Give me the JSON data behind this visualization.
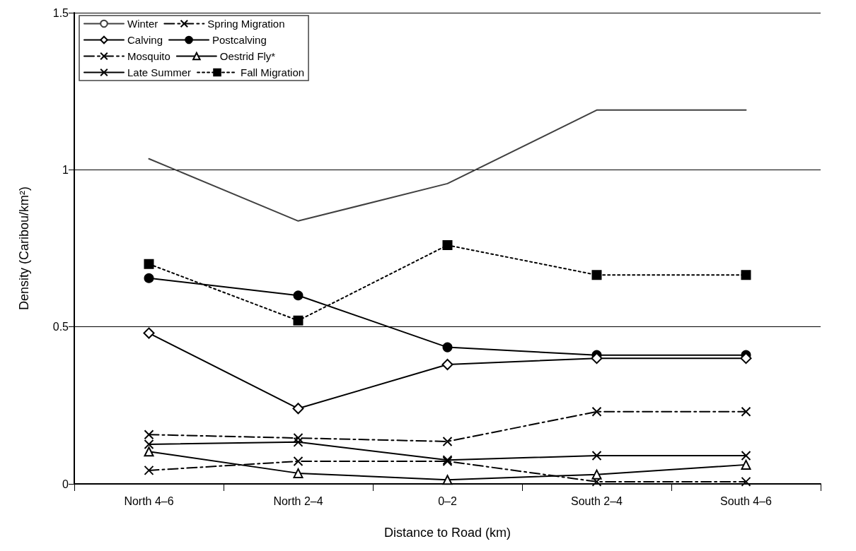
{
  "chart_data": {
    "type": "line",
    "xlabel": "Distance to Road (km)",
    "ylabel": "Density (Caribou/km²)",
    "categories": [
      "North 4–6",
      "North 2–4",
      "0–2",
      "South 2–4",
      "South 4–6"
    ],
    "ylim": [
      0,
      1.5
    ],
    "yticks": [
      0,
      0.5,
      1,
      1.5
    ],
    "grid": "y",
    "legend": "top left",
    "series": [
      {
        "name": "Winter",
        "color": "#404040",
        "marker": "none",
        "line_style": "solid",
        "values": [
          1.035,
          0.837,
          0.956,
          1.19,
          1.19
        ]
      },
      {
        "name": "Spring Migration",
        "color": "#000000",
        "marker": "cross",
        "line_style": "dashed",
        "values": [
          0.157,
          0.146,
          0.135,
          0.23,
          0.23
        ]
      },
      {
        "name": "Calving",
        "color": "#000000",
        "marker": "diamond",
        "line_style": "solid",
        "values": [
          0.48,
          0.24,
          0.38,
          0.4,
          0.4
        ]
      },
      {
        "name": "Postcalving",
        "color": "#000000",
        "marker": "circle",
        "line_style": "solid",
        "values": [
          0.655,
          0.6,
          0.435,
          0.41,
          0.41
        ]
      },
      {
        "name": "Mosquito",
        "color": "#000000",
        "marker": "cross",
        "line_style": "dashed",
        "values": [
          0.043,
          0.072,
          0.072,
          0.007,
          0.007
        ]
      },
      {
        "name": "Oestrid Fly*",
        "color": "#000000",
        "marker": "triangle",
        "line_style": "solid",
        "values": [
          0.103,
          0.034,
          0.013,
          0.03,
          0.061
        ]
      },
      {
        "name": "Late Summer",
        "color": "#000000",
        "marker": "cross",
        "line_style": "solid",
        "values": [
          0.126,
          0.133,
          0.076,
          0.09,
          0.09
        ]
      },
      {
        "name": "Fall Migration",
        "color": "#000000",
        "marker": "square",
        "line_style": "dotted",
        "values": [
          0.7,
          0.52,
          0.76,
          0.665,
          0.665
        ]
      }
    ]
  }
}
